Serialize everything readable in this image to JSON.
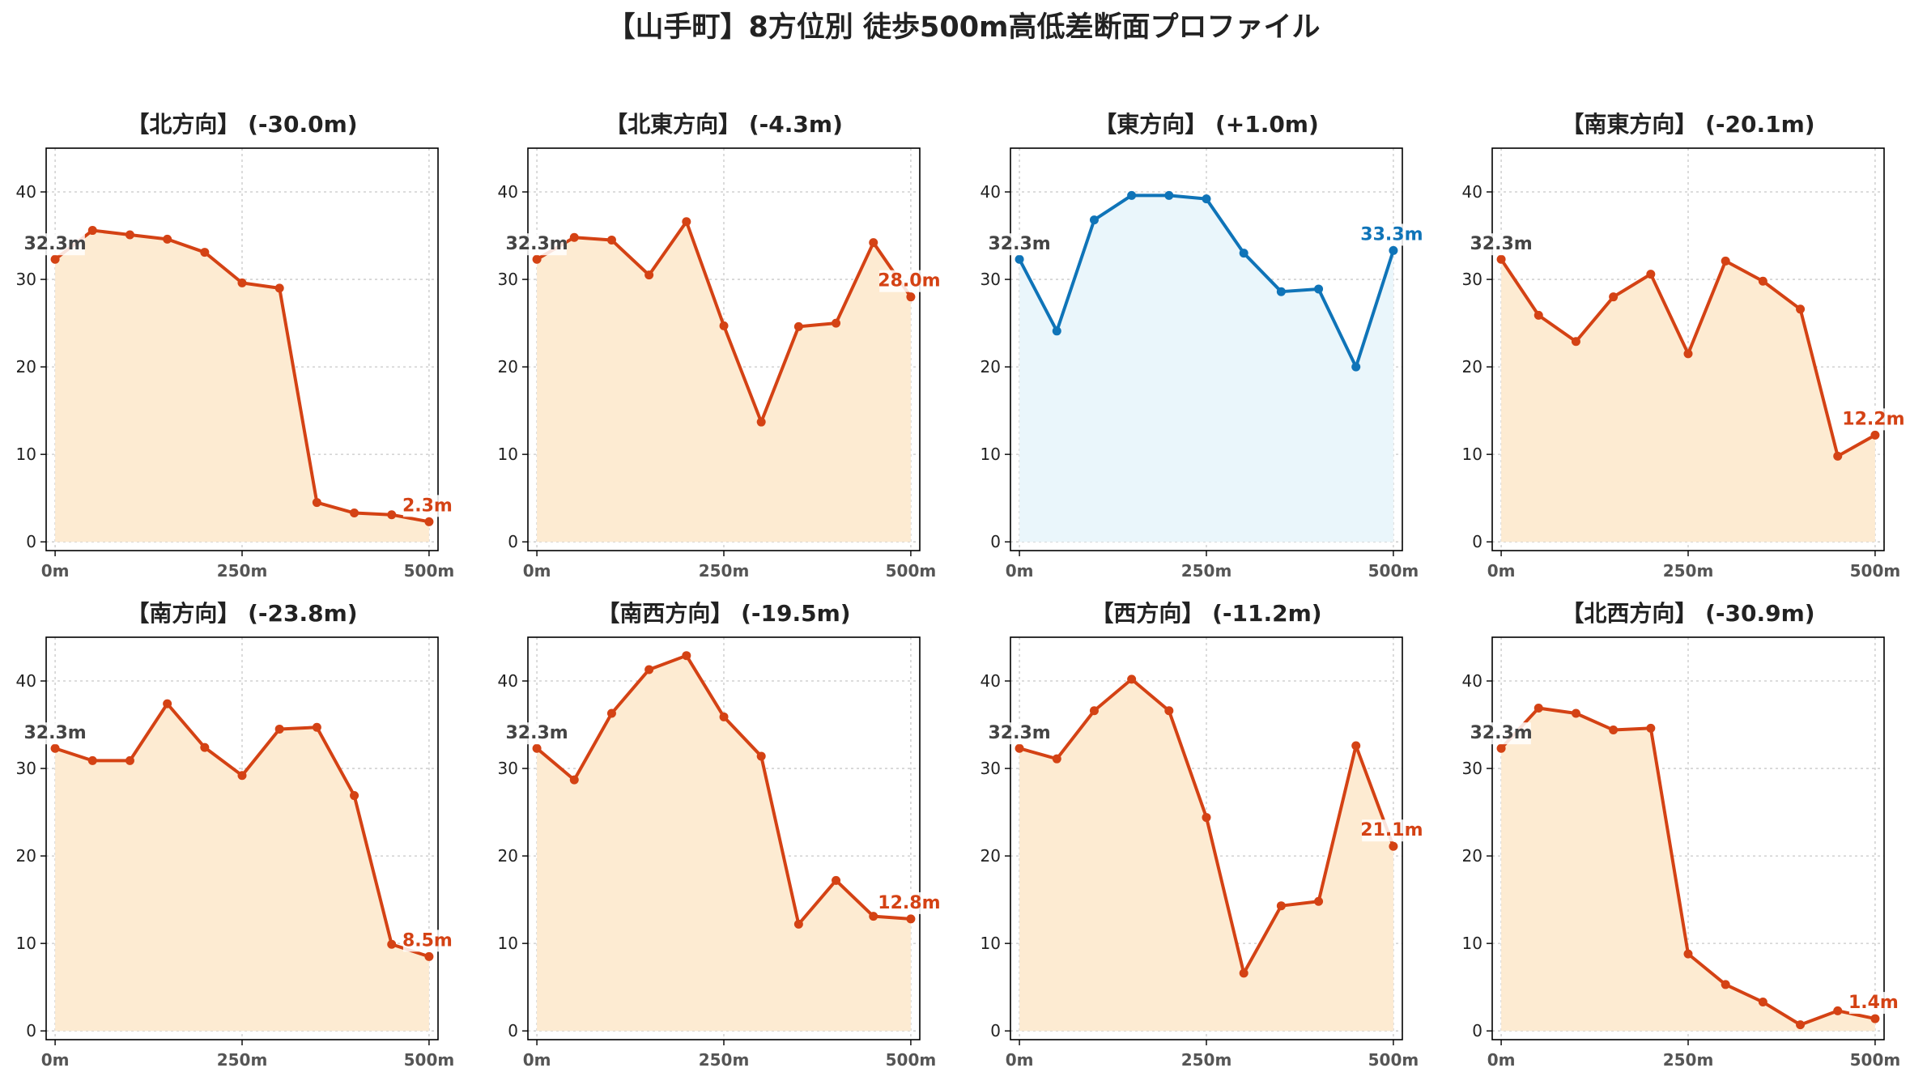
{
  "title": "【山手町】8方位別 徒歩500m高低差断面プロファイル",
  "colors": {
    "down_line": "#d44214",
    "down_fill": "#fdebd2",
    "up_line": "#0f74b8",
    "up_fill": "#eaf6fb",
    "start_label": "#444444"
  },
  "chart_data": [
    {
      "type": "area",
      "title": "【北方向】 (-30.0m)",
      "xlabel": "",
      "ylabel": "",
      "x": [
        0,
        50,
        100,
        150,
        200,
        250,
        300,
        350,
        400,
        450,
        500
      ],
      "x_ticks": [
        0,
        250,
        500
      ],
      "x_tick_labels": [
        "0m",
        "250m",
        "500m"
      ],
      "y_ticks": [
        0,
        10,
        20,
        30,
        40
      ],
      "ylim": [
        -1,
        45
      ],
      "xlim": [
        -12,
        512
      ],
      "grid": true,
      "trend": "down",
      "series": [
        {
          "values": [
            32.3,
            35.6,
            35.1,
            34.6,
            33.1,
            29.6,
            29.0,
            4.5,
            3.3,
            3.1,
            2.3
          ]
        }
      ],
      "start_label": "32.3m",
      "end_label": "2.3m"
    },
    {
      "type": "area",
      "title": "【北東方向】 (-4.3m)",
      "xlabel": "",
      "ylabel": "",
      "x": [
        0,
        50,
        100,
        150,
        200,
        250,
        300,
        350,
        400,
        450,
        500
      ],
      "x_ticks": [
        0,
        250,
        500
      ],
      "x_tick_labels": [
        "0m",
        "250m",
        "500m"
      ],
      "y_ticks": [
        0,
        10,
        20,
        30,
        40
      ],
      "ylim": [
        -1,
        45
      ],
      "xlim": [
        -12,
        512
      ],
      "grid": true,
      "trend": "down",
      "series": [
        {
          "values": [
            32.3,
            34.8,
            34.5,
            30.5,
            36.6,
            24.7,
            13.7,
            24.6,
            25.0,
            34.2,
            28.0
          ]
        }
      ],
      "start_label": "32.3m",
      "end_label": "28.0m"
    },
    {
      "type": "area",
      "title": "【東方向】 (+1.0m)",
      "xlabel": "",
      "ylabel": "",
      "x": [
        0,
        50,
        100,
        150,
        200,
        250,
        300,
        350,
        400,
        450,
        500
      ],
      "x_ticks": [
        0,
        250,
        500
      ],
      "x_tick_labels": [
        "0m",
        "250m",
        "500m"
      ],
      "y_ticks": [
        0,
        10,
        20,
        30,
        40
      ],
      "ylim": [
        -1,
        45
      ],
      "xlim": [
        -12,
        512
      ],
      "grid": true,
      "trend": "up",
      "series": [
        {
          "values": [
            32.3,
            24.1,
            36.8,
            39.6,
            39.6,
            39.2,
            33.0,
            28.6,
            28.9,
            20.0,
            33.3
          ]
        }
      ],
      "start_label": "32.3m",
      "end_label": "33.3m"
    },
    {
      "type": "area",
      "title": "【南東方向】 (-20.1m)",
      "xlabel": "",
      "ylabel": "",
      "x": [
        0,
        50,
        100,
        150,
        200,
        250,
        300,
        350,
        400,
        450,
        500
      ],
      "x_ticks": [
        0,
        250,
        500
      ],
      "x_tick_labels": [
        "0m",
        "250m",
        "500m"
      ],
      "y_ticks": [
        0,
        10,
        20,
        30,
        40
      ],
      "ylim": [
        -1,
        45
      ],
      "xlim": [
        -12,
        512
      ],
      "grid": true,
      "trend": "down",
      "series": [
        {
          "values": [
            32.3,
            25.9,
            22.9,
            28.0,
            30.6,
            21.5,
            32.1,
            29.8,
            26.6,
            9.8,
            12.2
          ]
        }
      ],
      "start_label": "32.3m",
      "end_label": "12.2m"
    },
    {
      "type": "area",
      "title": "【南方向】 (-23.8m)",
      "xlabel": "",
      "ylabel": "",
      "x": [
        0,
        50,
        100,
        150,
        200,
        250,
        300,
        350,
        400,
        450,
        500
      ],
      "x_ticks": [
        0,
        250,
        500
      ],
      "x_tick_labels": [
        "0m",
        "250m",
        "500m"
      ],
      "y_ticks": [
        0,
        10,
        20,
        30,
        40
      ],
      "ylim": [
        -1,
        45
      ],
      "xlim": [
        -12,
        512
      ],
      "grid": true,
      "trend": "down",
      "series": [
        {
          "values": [
            32.3,
            30.9,
            30.9,
            37.4,
            32.4,
            29.2,
            34.5,
            34.7,
            26.9,
            9.9,
            8.5
          ]
        }
      ],
      "start_label": "32.3m",
      "end_label": "8.5m"
    },
    {
      "type": "area",
      "title": "【南西方向】 (-19.5m)",
      "xlabel": "",
      "ylabel": "",
      "x": [
        0,
        50,
        100,
        150,
        200,
        250,
        300,
        350,
        400,
        450,
        500
      ],
      "x_ticks": [
        0,
        250,
        500
      ],
      "x_tick_labels": [
        "0m",
        "250m",
        "500m"
      ],
      "y_ticks": [
        0,
        10,
        20,
        30,
        40
      ],
      "ylim": [
        -1,
        45
      ],
      "xlim": [
        -12,
        512
      ],
      "grid": true,
      "trend": "down",
      "series": [
        {
          "values": [
            32.3,
            28.7,
            36.3,
            41.3,
            42.9,
            35.9,
            31.4,
            12.2,
            17.2,
            13.1,
            12.8
          ]
        }
      ],
      "start_label": "32.3m",
      "end_label": "12.8m"
    },
    {
      "type": "area",
      "title": "【西方向】 (-11.2m)",
      "xlabel": "",
      "ylabel": "",
      "x": [
        0,
        50,
        100,
        150,
        200,
        250,
        300,
        350,
        400,
        450,
        500
      ],
      "x_ticks": [
        0,
        250,
        500
      ],
      "x_tick_labels": [
        "0m",
        "250m",
        "500m"
      ],
      "y_ticks": [
        0,
        10,
        20,
        30,
        40
      ],
      "ylim": [
        -1,
        45
      ],
      "xlim": [
        -12,
        512
      ],
      "grid": true,
      "trend": "down",
      "series": [
        {
          "values": [
            32.3,
            31.1,
            36.6,
            40.2,
            36.6,
            24.4,
            6.6,
            14.3,
            14.8,
            32.6,
            21.1
          ]
        }
      ],
      "start_label": "32.3m",
      "end_label": "21.1m"
    },
    {
      "type": "area",
      "title": "【北西方向】 (-30.9m)",
      "xlabel": "",
      "ylabel": "",
      "x": [
        0,
        50,
        100,
        150,
        200,
        250,
        300,
        350,
        400,
        450,
        500
      ],
      "x_ticks": [
        0,
        250,
        500
      ],
      "x_tick_labels": [
        "0m",
        "250m",
        "500m"
      ],
      "y_ticks": [
        0,
        10,
        20,
        30,
        40
      ],
      "ylim": [
        -1,
        45
      ],
      "xlim": [
        -12,
        512
      ],
      "grid": true,
      "trend": "down",
      "series": [
        {
          "values": [
            32.3,
            36.9,
            36.3,
            34.4,
            34.6,
            8.8,
            5.3,
            3.3,
            0.7,
            2.3,
            1.4
          ]
        }
      ],
      "start_label": "32.3m",
      "end_label": "1.4m"
    }
  ]
}
